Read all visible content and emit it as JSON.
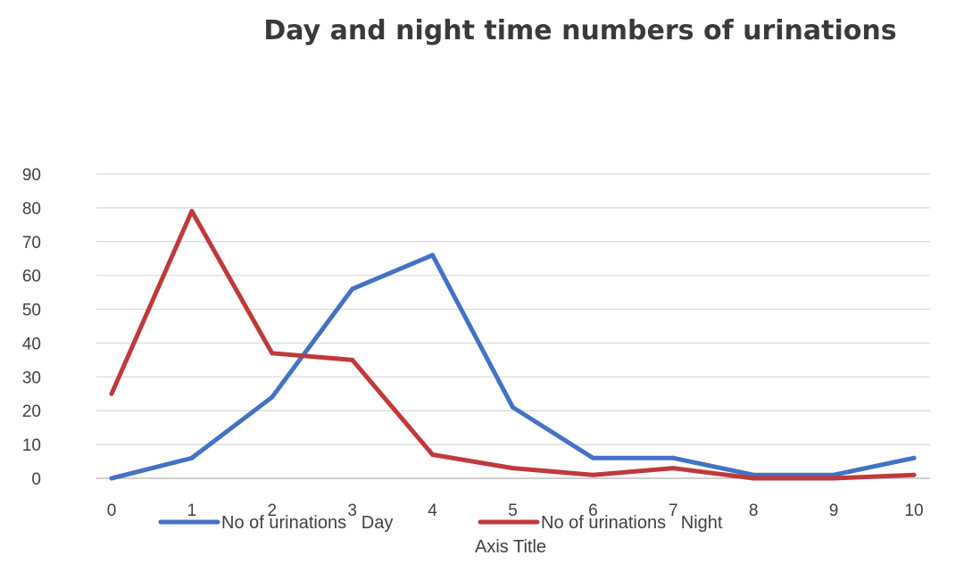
{
  "chart_data": {
    "type": "line",
    "title": "Day and night time numbers of urinations",
    "xlabel": "Axis Title",
    "ylabel": "",
    "x": [
      0,
      1,
      2,
      3,
      4,
      5,
      6,
      7,
      8,
      9,
      10
    ],
    "ylim": [
      0,
      90
    ],
    "yticks": [
      0,
      10,
      20,
      30,
      40,
      50,
      60,
      70,
      80,
      90
    ],
    "grid": true,
    "legend_position": "bottom",
    "series": [
      {
        "name": "No of urinations   Day",
        "color": "#4472c4",
        "values": [
          0,
          6,
          24,
          56,
          66,
          21,
          6,
          6,
          1,
          1,
          6
        ]
      },
      {
        "name": "No of urinations   Night",
        "color": "#c0393b",
        "values": [
          25,
          79,
          37,
          35,
          7,
          3,
          1,
          3,
          0,
          0,
          1
        ]
      }
    ]
  }
}
